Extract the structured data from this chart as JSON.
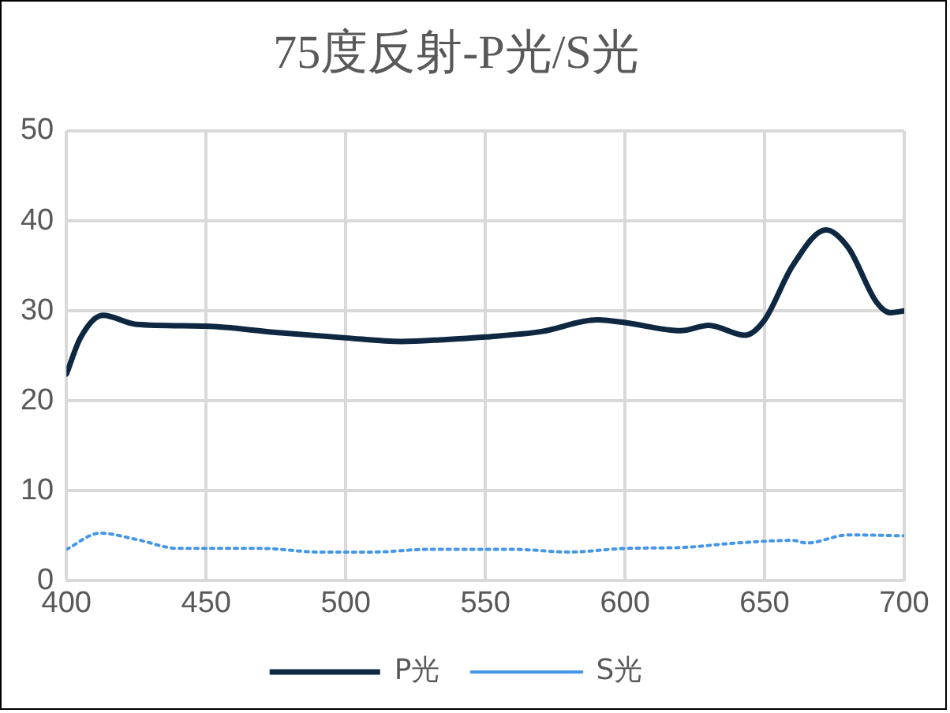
{
  "chart_data": {
    "type": "line",
    "title": "75度反射-P光/S光",
    "xlim": [
      400,
      700
    ],
    "xticks": [
      400,
      450,
      500,
      550,
      600,
      650,
      700
    ],
    "ylim": [
      0,
      50
    ],
    "yticks": [
      0,
      10,
      20,
      30,
      40,
      50
    ],
    "grid": true,
    "legend": "bottom",
    "marker": "none",
    "series": [
      {
        "name": "P光",
        "color": "#0e2841",
        "line_style": "solid",
        "x": [
          400,
          405,
          413,
          425,
          450,
          475,
          500,
          520,
          535,
          550,
          570,
          590,
          600,
          620,
          630,
          643,
          650,
          660,
          672,
          680,
          690,
          695,
          700
        ],
        "values": [
          23,
          27,
          29.5,
          28.5,
          28.3,
          27.6,
          27,
          26.6,
          26.8,
          27.1,
          27.7,
          29,
          28.7,
          27.8,
          28.4,
          27.3,
          29,
          35,
          39,
          37,
          31,
          29.8,
          30
        ]
      },
      {
        "name": "S光",
        "color": "#4596e8",
        "line_style": "dotted",
        "x": [
          400,
          412,
          425,
          440,
          470,
          490,
          510,
          530,
          560,
          580,
          600,
          620,
          640,
          660,
          665,
          680,
          700
        ],
        "values": [
          3.5,
          5.3,
          4.6,
          3.6,
          3.6,
          3.2,
          3.2,
          3.5,
          3.5,
          3.2,
          3.6,
          3.7,
          4.2,
          4.5,
          4.2,
          5.1,
          5
        ]
      }
    ]
  }
}
